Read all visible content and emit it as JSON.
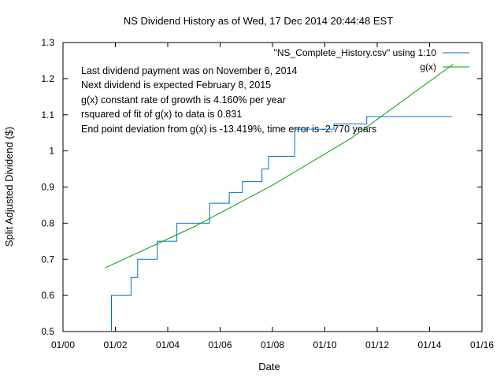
{
  "chart_data": {
    "type": "line",
    "title": "NS Dividend History as of Wed, 17 Dec 2014 20:44:48 EST",
    "xlabel": "Date",
    "ylabel": "Split Adjusted Dividend ($)",
    "xlim": [
      2000.0,
      2016.0
    ],
    "ylim": [
      0.5,
      1.3
    ],
    "grid": false,
    "legend_position": "top-right",
    "x_ticks": [
      {
        "x": 2000,
        "label": "01/00"
      },
      {
        "x": 2002,
        "label": "01/02"
      },
      {
        "x": 2004,
        "label": "01/04"
      },
      {
        "x": 2006,
        "label": "01/06"
      },
      {
        "x": 2008,
        "label": "01/08"
      },
      {
        "x": 2010,
        "label": "01/10"
      },
      {
        "x": 2012,
        "label": "01/12"
      },
      {
        "x": 2014,
        "label": "01/14"
      },
      {
        "x": 2016,
        "label": "01/16"
      }
    ],
    "y_ticks": [
      {
        "y": 0.5,
        "label": "0.5"
      },
      {
        "y": 0.6,
        "label": "0.6"
      },
      {
        "y": 0.7,
        "label": "0.7"
      },
      {
        "y": 0.8,
        "label": "0.8"
      },
      {
        "y": 0.9,
        "label": "0.9"
      },
      {
        "y": 1.0,
        "label": "1"
      },
      {
        "y": 1.1,
        "label": "1.1"
      },
      {
        "y": 1.2,
        "label": "1.2"
      },
      {
        "y": 1.3,
        "label": "1.3"
      }
    ],
    "annotations": [
      "Last dividend payment was on November 6, 2014",
      "Next dividend is expected February 8, 2015",
      "g(x) constant rate of growth is  4.160% per year",
      "rsquared of fit of g(x) to data is  0.831",
      "End point deviation from g(x) is  -13.419%, time error is   -2.770 years"
    ],
    "series": [
      {
        "name": "\"NS_Complete_History.csv\" using 1:10",
        "color": "#0072bd",
        "style": "step",
        "x": [
          2001.85,
          2001.85,
          2002.6,
          2002.6,
          2002.85,
          2002.85,
          2003.6,
          2003.6,
          2004.35,
          2004.35,
          2005.6,
          2005.6,
          2006.35,
          2006.35,
          2006.85,
          2006.85,
          2007.6,
          2007.6,
          2007.85,
          2007.85,
          2008.85,
          2008.85,
          2010.35,
          2010.35,
          2011.6,
          2011.6,
          2014.85
        ],
        "y": [
          0.5,
          0.6,
          0.6,
          0.65,
          0.65,
          0.7,
          0.7,
          0.75,
          0.75,
          0.8,
          0.8,
          0.855,
          0.855,
          0.885,
          0.885,
          0.915,
          0.915,
          0.95,
          0.95,
          0.985,
          0.985,
          1.06,
          1.06,
          1.075,
          1.075,
          1.095,
          1.095
        ]
      },
      {
        "name": "g(x)",
        "color": "#00a000",
        "style": "line",
        "x": [
          2001.6,
          2005.0,
          2008.0,
          2011.0,
          2014.9
        ],
        "y": [
          0.676,
          0.79,
          0.905,
          1.035,
          1.24
        ]
      }
    ]
  }
}
